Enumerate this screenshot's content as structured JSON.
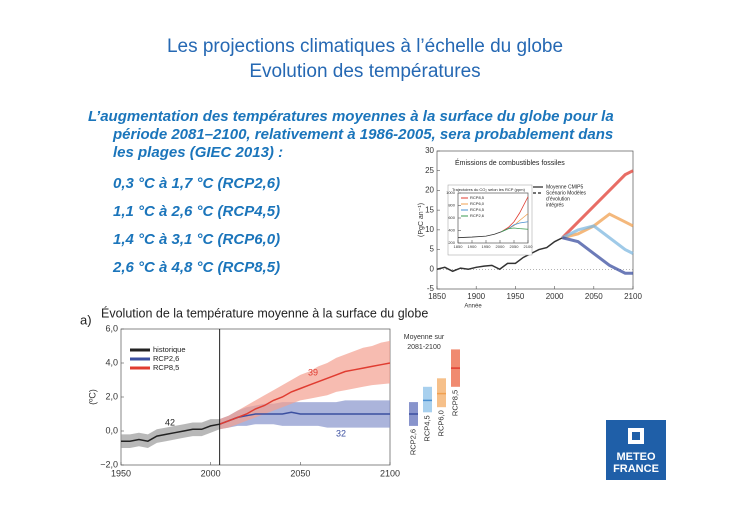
{
  "title": [
    "Les projections climatiques à l’échelle du globe",
    "Evolution des températures"
  ],
  "intro": [
    "L’augmentation des températures moyennes à la surface du globe pour la",
    "période 2081–2100, relativement à 1986-2005, sera probablement dans",
    "les plages (GIEC 2013) :"
  ],
  "items": [
    "0,3  °C à 1,7  °C (RCP2,6)",
    "1,1  °C à 2,6  °C (RCP4,5)",
    "1,4  °C à 3,1  °C (RCP6,0)",
    "2,6  °C à 4,8  °C (RCP8,5)"
  ],
  "logo": [
    "METEO",
    "FRANCE"
  ],
  "chart_data": [
    {
      "type": "line",
      "title": "Émissions de combustibles fossiles",
      "ylabel": "(PgC an⁻¹)",
      "xlabel": "Année",
      "xlim": [
        1850,
        2100
      ],
      "ylim": [
        -5,
        30
      ],
      "xticks": [
        1850,
        1900,
        1950,
        2000,
        2050,
        2100
      ],
      "yticks": [
        -5,
        0,
        5,
        10,
        15,
        20,
        25,
        30
      ],
      "legend": [
        {
          "label": [
            "Moyenne CMIP5"
          ],
          "style": "solid"
        },
        {
          "label": [
            "Scénario Modèles",
            "d’évolution",
            "intégrés"
          ],
          "style": "dashed"
        }
      ],
      "series": [
        {
          "color": "#333333",
          "x": [
            1850,
            1860,
            1870,
            1880,
            1890,
            1900,
            1910,
            1920,
            1930,
            1940,
            1950,
            1960,
            1970,
            1980,
            1990,
            2000,
            2010
          ],
          "values": [
            0,
            0.5,
            -0.5,
            0.3,
            0,
            0.5,
            0.8,
            1,
            0,
            1.5,
            1.5,
            3,
            4,
            5,
            5.5,
            7,
            8
          ]
        },
        {
          "color": "#e03c31",
          "x": [
            2010,
            2030,
            2050,
            2070,
            2090,
            2100
          ],
          "values": [
            8,
            12,
            16,
            20,
            24,
            25
          ]
        },
        {
          "color": "#f0a050",
          "x": [
            2010,
            2030,
            2050,
            2070,
            2090,
            2100
          ],
          "values": [
            8,
            9,
            11,
            14,
            12,
            11
          ]
        },
        {
          "color": "#7fb8e0",
          "x": [
            2010,
            2030,
            2050,
            2070,
            2090,
            2100
          ],
          "values": [
            8,
            10,
            11,
            8,
            5,
            4
          ]
        },
        {
          "color": "#3b4fa0",
          "x": [
            2010,
            2030,
            2050,
            2070,
            2090,
            2100
          ],
          "values": [
            8,
            7,
            4,
            1,
            -1,
            -1
          ]
        }
      ]
    },
    {
      "type": "line",
      "title": "Trajectoires du CO₂ selon les RCP (ppm)",
      "xlim": [
        1850,
        2100
      ],
      "ylim": [
        200,
        1000
      ],
      "xticks": [
        1850,
        1900,
        1950,
        2000,
        2050,
        2100
      ],
      "yticks": [
        200,
        400,
        600,
        800,
        1000
      ],
      "series": [
        {
          "name": "RCP8,5",
          "color": "#e03c31",
          "x": [
            2005,
            2030,
            2050,
            2070,
            2100
          ],
          "values": [
            380,
            450,
            540,
            680,
            940
          ]
        },
        {
          "name": "RCP6,0",
          "color": "#f0a050",
          "x": [
            2005,
            2030,
            2050,
            2070,
            2100
          ],
          "values": [
            380,
            430,
            480,
            560,
            670
          ]
        },
        {
          "name": "RCP4,5",
          "color": "#4a90d0",
          "x": [
            2005,
            2030,
            2050,
            2070,
            2100
          ],
          "values": [
            380,
            430,
            490,
            520,
            540
          ]
        },
        {
          "name": "RCP2,6",
          "color": "#3a9a50",
          "x": [
            2005,
            2030,
            2050,
            2070,
            2100
          ],
          "values": [
            380,
            430,
            440,
            430,
            420
          ]
        },
        {
          "color": "#333333",
          "x": [
            1850,
            1900,
            1950,
            1980,
            2005
          ],
          "values": [
            285,
            295,
            310,
            340,
            380
          ]
        }
      ]
    },
    {
      "type": "line",
      "panel": "a)",
      "title": "Évolution de la température moyenne à la surface du globe",
      "ylabel": "(ºC)",
      "xlim": [
        1950,
        2100
      ],
      "ylim": [
        -2,
        6
      ],
      "xticks": [
        1950,
        2000,
        2050,
        2100
      ],
      "yticks": [
        {
          "value": -2,
          "label": "−2,0"
        },
        {
          "value": 0,
          "label": "0,0"
        },
        {
          "value": 2,
          "label": "2,0"
        },
        {
          "value": 4,
          "label": "4,0"
        },
        {
          "value": 6,
          "label": "6,0"
        }
      ],
      "annotations": [
        "42",
        "39",
        "32"
      ],
      "series": [
        {
          "name": "historique",
          "color": "#222222",
          "band": "#9a9a9a",
          "x": [
            1950,
            1955,
            1960,
            1965,
            1970,
            1975,
            1980,
            1985,
            1990,
            1995,
            2000,
            2005
          ],
          "values": [
            -0.6,
            -0.6,
            -0.5,
            -0.6,
            -0.3,
            -0.2,
            -0.1,
            0,
            0.1,
            0.1,
            0.3,
            0.4
          ],
          "band_low": [
            -1,
            -1,
            -0.9,
            -1,
            -0.7,
            -0.6,
            -0.5,
            -0.4,
            -0.3,
            -0.3,
            -0.1,
            0.1
          ],
          "band_high": [
            -0.2,
            -0.2,
            -0.1,
            -0.2,
            0.1,
            0.2,
            0.3,
            0.4,
            0.5,
            0.5,
            0.7,
            0.7
          ]
        },
        {
          "name": "RCP2,6",
          "color": "#3b4fa0",
          "band": "#8894cc",
          "x": [
            2005,
            2010,
            2015,
            2020,
            2025,
            2030,
            2035,
            2040,
            2045,
            2050,
            2055,
            2060,
            2065,
            2070,
            2075,
            2080,
            2085,
            2090,
            2095,
            2100
          ],
          "values": [
            0.4,
            0.6,
            0.8,
            0.9,
            1,
            1,
            1,
            1,
            1.1,
            1,
            1,
            1,
            1,
            1,
            1,
            1,
            1,
            1,
            1,
            1
          ],
          "band_low": [
            0.1,
            0.2,
            0.3,
            0.3,
            0.4,
            0.4,
            0.4,
            0.3,
            0.3,
            0.3,
            0.3,
            0.3,
            0.2,
            0.2,
            0.2,
            0.2,
            0.2,
            0.2,
            0.2,
            0.2
          ],
          "band_high": [
            0.7,
            0.9,
            1.2,
            1.4,
            1.5,
            1.6,
            1.6,
            1.7,
            1.7,
            1.7,
            1.7,
            1.7,
            1.7,
            1.7,
            1.8,
            1.8,
            1.8,
            1.8,
            1.8,
            1.8
          ]
        },
        {
          "name": "RCP8,5",
          "color": "#e03c31",
          "band": "#f4a090",
          "x": [
            2005,
            2010,
            2015,
            2020,
            2025,
            2030,
            2035,
            2040,
            2045,
            2050,
            2055,
            2060,
            2065,
            2070,
            2075,
            2080,
            2085,
            2090,
            2095,
            2100
          ],
          "values": [
            0.4,
            0.6,
            0.8,
            1,
            1.3,
            1.5,
            1.8,
            2,
            2.3,
            2.5,
            2.7,
            2.9,
            3.1,
            3.3,
            3.5,
            3.6,
            3.7,
            3.8,
            3.9,
            4
          ],
          "band_low": [
            0.1,
            0.2,
            0.4,
            0.6,
            0.8,
            1,
            1.2,
            1.4,
            1.6,
            1.8,
            1.9,
            2,
            2.1,
            2.3,
            2.4,
            2.5,
            2.6,
            2.7,
            2.75,
            2.8
          ],
          "band_high": [
            0.7,
            0.9,
            1.2,
            1.5,
            1.8,
            2.1,
            2.4,
            2.7,
            3,
            3.3,
            3.5,
            3.8,
            4,
            4.3,
            4.5,
            4.7,
            4.9,
            5,
            5.2,
            5.3
          ]
        }
      ],
      "ranges": {
        "title": [
          "Moyenne sur",
          "2081-2100"
        ],
        "names": [
          "RCP2,6",
          "RCP4,5",
          "RCP6,0",
          "RCP8,5"
        ],
        "colors": [
          "#8894cc",
          "#a8d0ee",
          "#f6c08a",
          "#f08a70"
        ],
        "mean_colors": [
          "#3b4fa0",
          "#4a90d0",
          "#f0a050",
          "#e03c31"
        ],
        "low": [
          0.3,
          1.1,
          1.4,
          2.6
        ],
        "high": [
          1.7,
          2.6,
          3.1,
          4.8
        ],
        "mean": [
          1,
          1.8,
          2.2,
          3.7
        ]
      }
    }
  ]
}
